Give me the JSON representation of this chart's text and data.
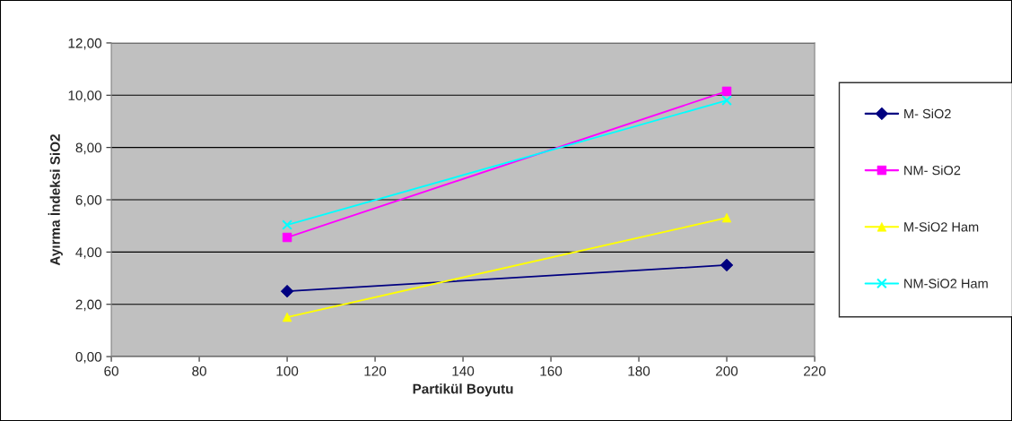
{
  "chart_data": {
    "type": "line",
    "xlabel": "Partikül Boyutu",
    "ylabel": "Ayırma İndeksi SiO2",
    "xlim": [
      60,
      220
    ],
    "xticks": [
      60,
      80,
      100,
      120,
      140,
      160,
      180,
      200,
      220
    ],
    "ylim": [
      0,
      12
    ],
    "yticks": [
      {
        "value": 0,
        "label": "0,00"
      },
      {
        "value": 2,
        "label": "2,00"
      },
      {
        "value": 4,
        "label": "4,00"
      },
      {
        "value": 6,
        "label": "6,00"
      },
      {
        "value": 8,
        "label": "8,00"
      },
      {
        "value": 10,
        "label": "10,00"
      },
      {
        "value": 12,
        "label": "12,00"
      }
    ],
    "grid": "y",
    "legend": "right",
    "x": [
      100,
      200
    ],
    "series": [
      {
        "name": "M- SiO2",
        "color": "#000080",
        "marker": "diamond",
        "values": [
          2.5,
          3.5
        ]
      },
      {
        "name": "NM- SiO2",
        "color": "#ff00ff",
        "marker": "square",
        "values": [
          4.56,
          10.15
        ]
      },
      {
        "name": "M-SiO2 Ham",
        "color": "#ffff00",
        "marker": "triangle",
        "values": [
          1.51,
          5.31
        ]
      },
      {
        "name": "NM-SiO2 Ham",
        "color": "#00ffff",
        "marker": "cross",
        "values": [
          5.04,
          9.8
        ]
      }
    ]
  }
}
